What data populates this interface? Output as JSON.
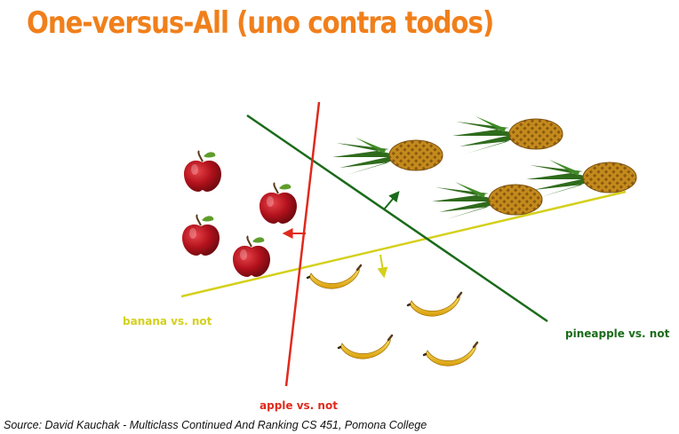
{
  "slide": {
    "title": "One-versus-All (uno contra todos)",
    "source": "Source: David Kauchak - Multiclass Continued And Ranking CS 451, Pomona College"
  },
  "classifiers": [
    {
      "label": "banana vs. not",
      "color": "#d4d01c"
    },
    {
      "label": "pineapple vs. not",
      "color": "#1a6b1a"
    },
    {
      "label": "apple vs. not",
      "color": "#e02a1c"
    }
  ],
  "colors": {
    "title": "#f07f1b",
    "apple": "#b3121c",
    "banana": "#f2c41a",
    "pineapple_body": "#c48a1c",
    "pineapple_leaves": "#2f6b1c"
  },
  "icons": [
    "apple-icon",
    "pineapple-icon",
    "banana-icon"
  ]
}
